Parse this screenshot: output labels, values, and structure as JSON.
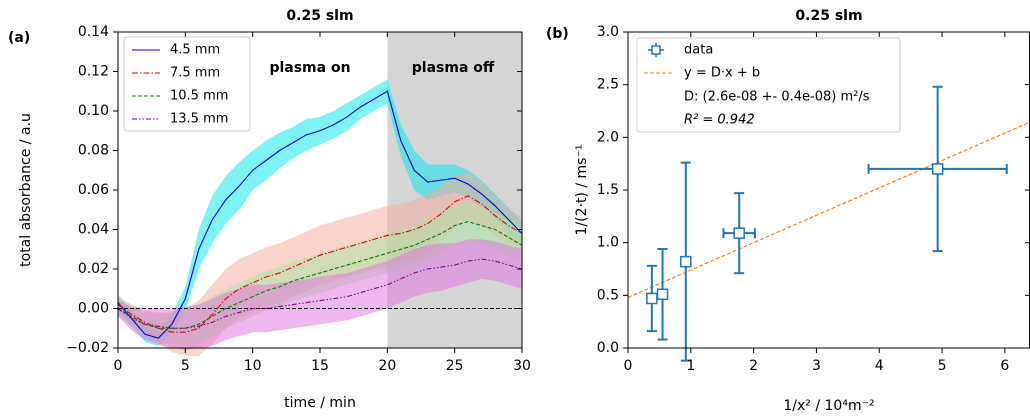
{
  "chart_data": [
    {
      "type": "line",
      "title": "0.25 slm",
      "panel": "(a)",
      "x_label": "time / min",
      "y_label": "total absorbance / a.u",
      "annotations": [
        "plasma on",
        "plasma off"
      ],
      "shaded_span": [
        20,
        30
      ],
      "hline": 0,
      "x": [
        0,
        1,
        2,
        3,
        4,
        5,
        6,
        7,
        8,
        9,
        10,
        11,
        12,
        13,
        14,
        15,
        16,
        17,
        18,
        19,
        20,
        21,
        22,
        23,
        24,
        25,
        26,
        27,
        28,
        29,
        30
      ],
      "xlim": [
        0,
        30
      ],
      "xticks": [
        0,
        5,
        10,
        15,
        20,
        25,
        30
      ],
      "ylim": [
        -0.02,
        0.14
      ],
      "yticks": [
        {
          "value": -0.02,
          "label": "−0.02"
        },
        {
          "value": 0,
          "label": "0.00"
        },
        {
          "value": 0.02,
          "label": "0.02"
        },
        {
          "value": 0.04,
          "label": "0.04"
        },
        {
          "value": 0.06,
          "label": "0.06"
        },
        {
          "value": 0.08,
          "label": "0.08"
        },
        {
          "value": 0.1,
          "label": "0.10"
        },
        {
          "value": 0.12,
          "label": "0.12"
        },
        {
          "value": 0.14,
          "label": "0.14"
        }
      ],
      "series": [
        {
          "name": "4.5 mm",
          "color": "#0000cc",
          "band_color": "#00e5f0",
          "linestyle": "solid",
          "values": [
            0.003,
            -0.005,
            -0.013,
            -0.015,
            -0.008,
            0.005,
            0.03,
            0.045,
            0.055,
            0.062,
            0.07,
            0.075,
            0.08,
            0.084,
            0.088,
            0.09,
            0.093,
            0.097,
            0.102,
            0.106,
            0.11,
            0.085,
            0.07,
            0.064,
            0.065,
            0.066,
            0.063,
            0.058,
            0.052,
            0.045,
            0.038
          ],
          "errors": [
            0.004,
            0.004,
            0.004,
            0.004,
            0.005,
            0.006,
            0.01,
            0.012,
            0.012,
            0.012,
            0.01,
            0.01,
            0.009,
            0.008,
            0.008,
            0.007,
            0.007,
            0.007,
            0.006,
            0.006,
            0.006,
            0.008,
            0.01,
            0.009,
            0.008,
            0.007,
            0.007,
            0.007,
            0.006,
            0.006,
            0.006
          ]
        },
        {
          "name": "7.5 mm",
          "color": "#e00000",
          "band_color": "#f5a898",
          "linestyle": "dashdot",
          "values": [
            0.002,
            -0.003,
            -0.007,
            -0.01,
            -0.012,
            -0.012,
            -0.01,
            -0.003,
            0.005,
            0.01,
            0.013,
            0.016,
            0.018,
            0.021,
            0.024,
            0.027,
            0.029,
            0.031,
            0.033,
            0.035,
            0.037,
            0.038,
            0.04,
            0.043,
            0.048,
            0.054,
            0.057,
            0.053,
            0.047,
            0.042,
            0.038
          ],
          "errors": [
            0.004,
            0.005,
            0.006,
            0.008,
            0.01,
            0.012,
            0.014,
            0.015,
            0.015,
            0.015,
            0.015,
            0.015,
            0.015,
            0.015,
            0.015,
            0.015,
            0.015,
            0.015,
            0.015,
            0.015,
            0.015,
            0.015,
            0.015,
            0.015,
            0.014,
            0.013,
            0.012,
            0.011,
            0.01,
            0.009,
            0.008
          ]
        },
        {
          "name": "10.5 mm",
          "color": "#007a00",
          "band_color": "#a8e6a0",
          "linestyle": "dashed",
          "values": [
            0.0,
            -0.004,
            -0.008,
            -0.01,
            -0.01,
            -0.01,
            -0.008,
            -0.004,
            0.0,
            0.003,
            0.006,
            0.009,
            0.011,
            0.014,
            0.016,
            0.018,
            0.02,
            0.022,
            0.024,
            0.026,
            0.028,
            0.03,
            0.032,
            0.035,
            0.038,
            0.042,
            0.044,
            0.042,
            0.04,
            0.036,
            0.032
          ],
          "errors": [
            0.004,
            0.005,
            0.006,
            0.007,
            0.008,
            0.009,
            0.01,
            0.01,
            0.01,
            0.01,
            0.01,
            0.01,
            0.01,
            0.01,
            0.01,
            0.01,
            0.01,
            0.01,
            0.01,
            0.01,
            0.01,
            0.01,
            0.01,
            0.01,
            0.01,
            0.01,
            0.01,
            0.01,
            0.009,
            0.009,
            0.008
          ]
        },
        {
          "name": "13.5 mm",
          "color": "#800080",
          "band_color": "#e070e0",
          "linestyle": "dashdotdot",
          "values": [
            0.0,
            -0.005,
            -0.008,
            -0.009,
            -0.01,
            -0.01,
            -0.009,
            -0.007,
            -0.004,
            -0.002,
            0.0,
            0.0,
            0.001,
            0.002,
            0.003,
            0.004,
            0.005,
            0.006,
            0.008,
            0.01,
            0.012,
            0.015,
            0.018,
            0.02,
            0.021,
            0.022,
            0.024,
            0.025,
            0.024,
            0.022,
            0.02
          ],
          "errors": [
            0.004,
            0.006,
            0.008,
            0.009,
            0.01,
            0.011,
            0.011,
            0.012,
            0.012,
            0.012,
            0.012,
            0.012,
            0.012,
            0.012,
            0.012,
            0.012,
            0.012,
            0.012,
            0.012,
            0.012,
            0.012,
            0.012,
            0.012,
            0.012,
            0.012,
            0.011,
            0.011,
            0.01,
            0.01,
            0.01,
            0.01
          ]
        }
      ]
    },
    {
      "type": "scatter",
      "title": "0.25 slm",
      "panel": "(b)",
      "x_label": "1/x² / 10⁴m⁻²",
      "y_label": "1/(2·t) / ms⁻¹",
      "xlim": [
        0,
        6.4
      ],
      "xticks": [
        0,
        1,
        2,
        3,
        4,
        5,
        6
      ],
      "ylim": [
        0,
        3
      ],
      "yticks": [
        {
          "value": 0,
          "label": "0.0"
        },
        {
          "value": 0.5,
          "label": "0.5"
        },
        {
          "value": 1,
          "label": "1.0"
        },
        {
          "value": 1.5,
          "label": "1.5"
        },
        {
          "value": 2,
          "label": "2.0"
        },
        {
          "value": 2.5,
          "label": "2.5"
        },
        {
          "value": 3,
          "label": "3.0"
        }
      ],
      "series": [
        {
          "name": "data",
          "color": "#1f77b4",
          "x": [
            0.38,
            0.55,
            0.92,
            1.77,
            4.93
          ],
          "values": [
            0.47,
            0.51,
            0.82,
            1.09,
            1.7
          ],
          "xerr": [
            0,
            0,
            0,
            0.25,
            1.1
          ],
          "yerr": [
            0.31,
            0.43,
            0.94,
            0.38,
            0.78
          ]
        }
      ],
      "fit": {
        "name": "y = D·x + b",
        "color": "#ff7f0e",
        "slope": 0.26,
        "intercept": 0.48
      },
      "legend_notes": [
        "D: (2.6e-08 +- 0.4e-08) m²/s",
        "R² = 0.942"
      ]
    }
  ]
}
